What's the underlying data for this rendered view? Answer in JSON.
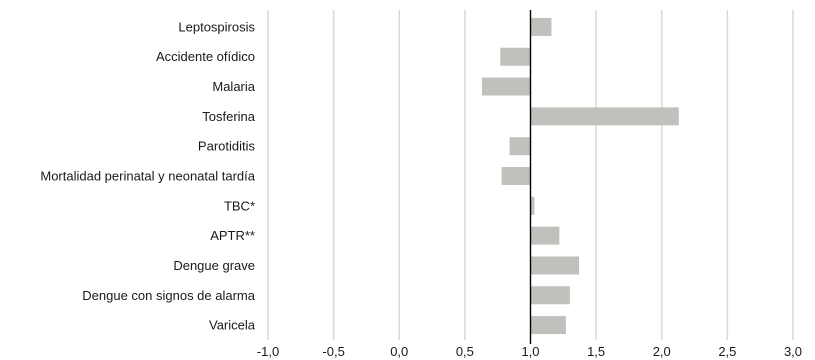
{
  "chart_data": {
    "type": "bar",
    "orientation": "horizontal",
    "title": "",
    "xlabel": "",
    "ylabel": "",
    "baseline": 1.0,
    "xlim": [
      -1.0,
      3.0
    ],
    "xticks": [
      "-1,0",
      "-0,5",
      "0,0",
      "0,5",
      "1,0",
      "1,5",
      "2,0",
      "2,5",
      "3,0"
    ],
    "xtick_values": [
      -1.0,
      -0.5,
      0.0,
      0.5,
      1.0,
      1.5,
      2.0,
      2.5,
      3.0
    ],
    "grid": "vertical",
    "legend": "none",
    "categories": [
      "Leptospirosis",
      "Accidente ofídico",
      "Malaria",
      "Tosferina",
      "Parotiditis",
      "Mortalidad perinatal y neonatal tardía",
      "TBC*",
      "APTR**",
      "Dengue grave",
      "Dengue con signos de alarma",
      "Varicela"
    ],
    "values": [
      1.16,
      0.77,
      0.63,
      2.13,
      0.84,
      0.78,
      1.03,
      1.22,
      1.37,
      1.3,
      1.27
    ],
    "colors": {
      "bar": "#c0c0bc",
      "grid": "#d9d9d9",
      "baseline": "#000000",
      "text": "#1a1a1a"
    }
  }
}
